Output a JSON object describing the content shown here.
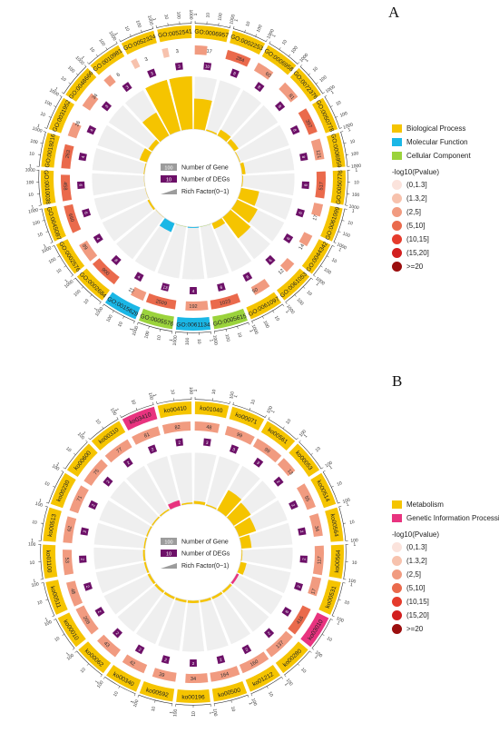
{
  "panels": {
    "a": {
      "letter": "A"
    },
    "b": {
      "letter": "B"
    }
  },
  "legends": {
    "pvalue_title": "-log10(Pvalue)",
    "pvalue_bins": [
      {
        "label": "(0,1.3]",
        "color": "#fbe3dc"
      },
      {
        "label": "(1.3,2]",
        "color": "#f7c2ad"
      },
      {
        "label": "(2,5]",
        "color": "#f19b80"
      },
      {
        "label": "(5,10]",
        "color": "#ea6a4c"
      },
      {
        "label": "(10,15]",
        "color": "#e53b2c"
      },
      {
        "label": "(15,20]",
        "color": "#d21f1f"
      },
      {
        "label": ">=20",
        "color": "#9b0e0e"
      }
    ],
    "inner_keys": {
      "gene": "Number of Gene",
      "degs": "Number of DEGs",
      "rich": "Rich Factor(0~1)",
      "gene_example": "100",
      "degs_example": "10"
    }
  },
  "colors": {
    "bp": "#f5c400",
    "mf": "#1ab7e6",
    "cc": "#9bd33c",
    "metab": "#f5c400",
    "gip": "#e8337f",
    "degs_box": "#6d1068",
    "gene_box": "#9c9c9c",
    "track_bg": "#efefef"
  },
  "chart_data": [
    {
      "type": "circos",
      "panel": "A",
      "categories_legend": [
        {
          "name": "Biological Process",
          "color": "#f5c400"
        },
        {
          "name": "Molecular Function",
          "color": "#1ab7e6"
        },
        {
          "name": "Cellular Component",
          "color": "#9bd33c"
        }
      ],
      "scale_ticks": [
        "1",
        "10",
        "100",
        "1000"
      ],
      "terms": [
        {
          "id": "GO:0006957",
          "cat": "bp",
          "genes": 17,
          "degs": 10,
          "rich": 0.58
        },
        {
          "id": "GO:0002253",
          "cat": "bp",
          "genes": 284,
          "degs": 8,
          "rich": 0.03
        },
        {
          "id": "GO:0006958",
          "cat": "bp",
          "genes": 60,
          "degs": 8,
          "rich": 0.13
        },
        {
          "id": "GO:0072376",
          "cat": "bp",
          "genes": 81,
          "degs": 8,
          "rich": 0.1
        },
        {
          "id": "GO:0050778",
          "cat": "bp",
          "genes": 397,
          "degs": 8,
          "rich": 0.02
        },
        {
          "id": "GO:0006959",
          "cat": "bp",
          "genes": 121,
          "degs": 8,
          "rich": 0.07
        },
        {
          "id": "GO:0050776",
          "cat": "bp",
          "genes": 517,
          "degs": 8,
          "rich": 0.02
        },
        {
          "id": "GO:0061099",
          "cat": "bp",
          "genes": 17,
          "degs": 6,
          "rich": 0.35
        },
        {
          "id": "GO:0044342",
          "cat": "bp",
          "genes": 14,
          "degs": 6,
          "rich": 0.43
        },
        {
          "id": "GO:0061053",
          "cat": "bp",
          "genes": 12,
          "degs": 6,
          "rich": 0.5
        },
        {
          "id": "GO:0061097",
          "cat": "bp",
          "genes": 50,
          "degs": 6,
          "rich": 0.12
        },
        {
          "id": "GO:0005615",
          "cat": "cc",
          "genes": 1023,
          "degs": 6,
          "rich": 0.01
        },
        {
          "id": "GO:0061134",
          "cat": "mf",
          "genes": 192,
          "degs": 4,
          "rich": 0.02
        },
        {
          "id": "GO:0005576",
          "cat": "cc",
          "genes": 2509,
          "degs": 13,
          "rich": 0.01
        },
        {
          "id": "GO:0015629",
          "cat": "mf",
          "genes": 22,
          "degs": 4,
          "rich": 0.18
        },
        {
          "id": "GO:0002684",
          "cat": "bp",
          "genes": 900,
          "degs": 8,
          "rich": 0.01
        },
        {
          "id": "GO:0002576",
          "cat": "bp",
          "genes": 89,
          "degs": 4,
          "rich": 0.04
        },
        {
          "id": "GO:0045087",
          "cat": "bp",
          "genes": 660,
          "degs": 6,
          "rich": 0.01
        },
        {
          "id": "GO:0010038",
          "cat": "bp",
          "genes": 458,
          "degs": 6,
          "rich": 0.01
        },
        {
          "id": "GO:0019216",
          "cat": "bp",
          "genes": 263,
          "degs": 4,
          "rich": 0.02
        },
        {
          "id": "GO:0031952",
          "cat": "bp",
          "genes": 26,
          "degs": 4,
          "rich": 0.15
        },
        {
          "id": "GO:0048666",
          "cat": "bp",
          "genes": 34,
          "degs": 3,
          "rich": 0.09
        },
        {
          "id": "GO:0010981",
          "cat": "bp",
          "genes": 6,
          "degs": 3,
          "rich": 0.5
        },
        {
          "id": "GO:0052324",
          "cat": "bp",
          "genes": 3,
          "degs": 3,
          "rich": 1.0
        },
        {
          "id": "GO:0052541",
          "cat": "bp",
          "genes": 3,
          "degs": 3,
          "rich": 1.0
        }
      ]
    },
    {
      "type": "circos",
      "panel": "B",
      "categories_legend": [
        {
          "name": "Metabolism",
          "color": "#f5c400"
        },
        {
          "name": "Genetic Information Processing",
          "color": "#e8337f"
        }
      ],
      "scale_ticks": [
        "1",
        "10",
        "100"
      ],
      "terms": [
        {
          "id": "ko01040",
          "cat": "metab",
          "genes": 48,
          "degs": 3,
          "rich": 0.06
        },
        {
          "id": "ko00071",
          "cat": "metab",
          "genes": 99,
          "degs": 3,
          "rich": 0.03
        },
        {
          "id": "ko00561",
          "cat": "metab",
          "genes": 99,
          "degs": 3,
          "rich": 0.45
        },
        {
          "id": "ko00053",
          "cat": "metab",
          "genes": 13,
          "degs": 2,
          "rich": 0.4
        },
        {
          "id": "ko00514",
          "cat": "metab",
          "genes": 55,
          "degs": 2,
          "rich": 0.35
        },
        {
          "id": "ko00564",
          "cat": "metab",
          "genes": 34,
          "degs": 2,
          "rich": 0.2
        },
        {
          "id": "ko00564",
          "cat": "metab",
          "genes": 117,
          "degs": 2,
          "rich": 0.02
        },
        {
          "id": "ko00531",
          "cat": "metab",
          "genes": 17,
          "degs": 2,
          "rich": 0.12
        },
        {
          "id": "ko03010",
          "cat": "gip",
          "genes": 416,
          "degs": 6,
          "rich": 0.05
        },
        {
          "id": "ko00280",
          "cat": "metab",
          "genes": 137,
          "degs": 2,
          "rich": 0.05
        },
        {
          "id": "ko01212",
          "cat": "metab",
          "genes": 160,
          "degs": 2,
          "rich": 0.05
        },
        {
          "id": "ko00500",
          "cat": "metab",
          "genes": 164,
          "degs": 2,
          "rich": 0.05
        },
        {
          "id": "ko00196",
          "cat": "metab",
          "genes": 34,
          "degs": 2,
          "rich": 0.05
        },
        {
          "id": "ko00592",
          "cat": "metab",
          "genes": 39,
          "degs": 2,
          "rich": 0.05
        },
        {
          "id": "ko00340",
          "cat": "metab",
          "genes": 42,
          "degs": 2,
          "rich": 0.05
        },
        {
          "id": "ko00062",
          "cat": "metab",
          "genes": 43,
          "degs": 2,
          "rich": 0.05
        },
        {
          "id": "ko00010",
          "cat": "metab",
          "genes": 208,
          "degs": 2,
          "rich": 0.05
        },
        {
          "id": "ko00511",
          "cat": "metab",
          "genes": 48,
          "degs": 2,
          "rich": 0.04
        },
        {
          "id": "ko01100",
          "cat": "metab",
          "genes": 53,
          "degs": 2,
          "rich": 0.04
        },
        {
          "id": "ko00513",
          "cat": "metab",
          "genes": 62,
          "degs": 2,
          "rich": 0.03
        },
        {
          "id": "ko00230",
          "cat": "metab",
          "genes": 71,
          "degs": 2,
          "rich": 0.03
        },
        {
          "id": "ko00600",
          "cat": "metab",
          "genes": 75,
          "degs": 2,
          "rich": 0.03
        },
        {
          "id": "ko00310",
          "cat": "metab",
          "genes": 77,
          "degs": 2,
          "rich": 0.03
        },
        {
          "id": "ko03410",
          "cat": "gip",
          "genes": 81,
          "degs": 2,
          "rich": 0.11
        },
        {
          "id": "ko00410",
          "cat": "metab",
          "genes": 82,
          "degs": 2,
          "rich": 0.03
        }
      ]
    }
  ]
}
